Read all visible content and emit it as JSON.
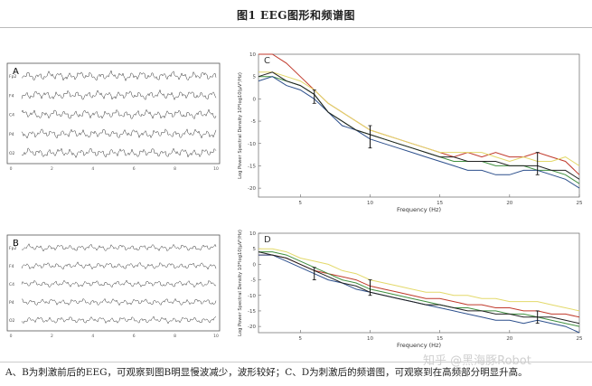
{
  "figure": {
    "title": "图1    EEG图形和频谱图",
    "caption": "A、B为刺激前后的EEG，可观察到图B明显慢波减少，波形较好；C、D为刺激后的频谱图，可观察到在高频部分明显升高。",
    "watermark": "知乎 @黑海豚Robot"
  },
  "eeg_panels": [
    {
      "label": "A",
      "channels": [
        "Fp2",
        "F4",
        "C4",
        "P4",
        "O2"
      ],
      "x_ticks": [
        "0",
        "2",
        "4",
        "6",
        "8",
        "10"
      ]
    },
    {
      "label": "B",
      "channels": [
        "Fp2",
        "F4",
        "C4",
        "P4",
        "O2"
      ],
      "x_ticks": [
        "0",
        "2",
        "4",
        "6",
        "8",
        "10"
      ]
    }
  ],
  "colors": {
    "red": "#c0392b",
    "yellow": "#e3d96a",
    "green": "#3f8f3f",
    "blue": "#2c4f8c",
    "black": "#222222"
  },
  "chart_data": [
    {
      "type": "line",
      "panel_label": "C",
      "xlabel": "Frequency (Hz)",
      "ylabel": "Log Power Spectral Density 10*log10(μV²/Hz)",
      "xlim": [
        2,
        25
      ],
      "ylim": [
        -22,
        10
      ],
      "x_ticks": [
        5,
        10,
        15,
        20,
        25
      ],
      "y_ticks": [
        10,
        5,
        0,
        -5,
        -10,
        -15,
        -20
      ],
      "x": [
        2,
        3,
        4,
        5,
        6,
        7,
        8,
        9,
        10,
        11,
        12,
        13,
        14,
        15,
        16,
        17,
        18,
        19,
        20,
        21,
        22,
        23,
        24,
        25
      ],
      "series": [
        {
          "color": "#c0392b",
          "values": [
            10,
            10,
            8,
            5,
            2,
            -1,
            -3,
            -5,
            -7,
            -8,
            -9,
            -10,
            -11,
            -12,
            -13,
            -12,
            -13,
            -12,
            -13,
            -13,
            -12,
            -13,
            -14,
            -17
          ]
        },
        {
          "color": "#e3d96a",
          "values": [
            6,
            6,
            5,
            4,
            2,
            -1,
            -3,
            -5,
            -7,
            -8,
            -9,
            -10,
            -11,
            -12,
            -12,
            -12,
            -12,
            -13,
            -14,
            -13,
            -14,
            -14,
            -13,
            -15
          ]
        },
        {
          "color": "#3f8f3f",
          "values": [
            5,
            5,
            4,
            3,
            1,
            -3,
            -5,
            -7,
            -8,
            -9,
            -10,
            -11,
            -12,
            -13,
            -14,
            -14,
            -14,
            -15,
            -15,
            -15,
            -16,
            -16,
            -17,
            -19
          ]
        },
        {
          "color": "#2c4f8c",
          "values": [
            4,
            5,
            3,
            2,
            0,
            -3,
            -6,
            -7,
            -9,
            -10,
            -11,
            -12,
            -13,
            -14,
            -15,
            -16,
            -16,
            -17,
            -17,
            -16,
            -16,
            -17,
            -18,
            -20
          ]
        },
        {
          "color": "#222222",
          "values": [
            5,
            6,
            4,
            3,
            1,
            -3,
            -5,
            -7,
            -8,
            -9,
            -10,
            -11,
            -12,
            -13,
            -13,
            -14,
            -14,
            -14,
            -15,
            -15,
            -15,
            -16,
            -16,
            -18
          ]
        }
      ],
      "error_bars": [
        {
          "x": 6,
          "low": -1,
          "high": 2
        },
        {
          "x": 10,
          "low": -11,
          "high": -6
        },
        {
          "x": 22,
          "low": -17,
          "high": -12
        }
      ]
    },
    {
      "type": "line",
      "panel_label": "D",
      "xlabel": "Frequency (Hz)",
      "ylabel": "Log Power Spectral Density 10*log10(μV²/Hz)",
      "xlim": [
        2,
        25
      ],
      "ylim": [
        -22,
        10
      ],
      "x_ticks": [
        5,
        10,
        15,
        20,
        25
      ],
      "y_ticks": [
        10,
        5,
        0,
        -5,
        -10,
        -15,
        -20
      ],
      "x": [
        2,
        3,
        4,
        5,
        6,
        7,
        8,
        9,
        10,
        11,
        12,
        13,
        14,
        15,
        16,
        17,
        18,
        19,
        20,
        21,
        22,
        23,
        24,
        25
      ],
      "series": [
        {
          "color": "#e3d96a",
          "values": [
            5,
            5,
            4,
            2,
            1,
            0,
            -2,
            -3,
            -5,
            -6,
            -7,
            -8,
            -9,
            -9,
            -10,
            -10,
            -11,
            -11,
            -12,
            -12,
            -12,
            -13,
            -14,
            -15
          ]
        },
        {
          "color": "#c0392b",
          "values": [
            3,
            3,
            2,
            0,
            -2,
            -3,
            -4,
            -5,
            -7,
            -8,
            -9,
            -10,
            -11,
            -11,
            -12,
            -13,
            -13,
            -14,
            -14,
            -15,
            -15,
            -16,
            -16,
            -17
          ]
        },
        {
          "color": "#3f8f3f",
          "values": [
            4,
            4,
            3,
            1,
            -1,
            -3,
            -5,
            -6,
            -8,
            -9,
            -10,
            -11,
            -12,
            -13,
            -14,
            -14,
            -15,
            -15,
            -16,
            -16,
            -17,
            -18,
            -19,
            -20
          ]
        },
        {
          "color": "#2c4f8c",
          "values": [
            3,
            3,
            1,
            -1,
            -3,
            -5,
            -6,
            -8,
            -9,
            -10,
            -11,
            -12,
            -13,
            -14,
            -15,
            -16,
            -17,
            -18,
            -18,
            -19,
            -18,
            -19,
            -20,
            -22
          ]
        },
        {
          "color": "#222222",
          "values": [
            4,
            3,
            2,
            0,
            -2,
            -4,
            -6,
            -7,
            -9,
            -10,
            -11,
            -12,
            -13,
            -13,
            -14,
            -15,
            -15,
            -16,
            -16,
            -17,
            -17,
            -17,
            -18,
            -19
          ]
        }
      ],
      "error_bars": [
        {
          "x": 6,
          "low": -5,
          "high": -1
        },
        {
          "x": 10,
          "low": -10,
          "high": -5
        },
        {
          "x": 22,
          "low": -19,
          "high": -15
        }
      ]
    }
  ]
}
